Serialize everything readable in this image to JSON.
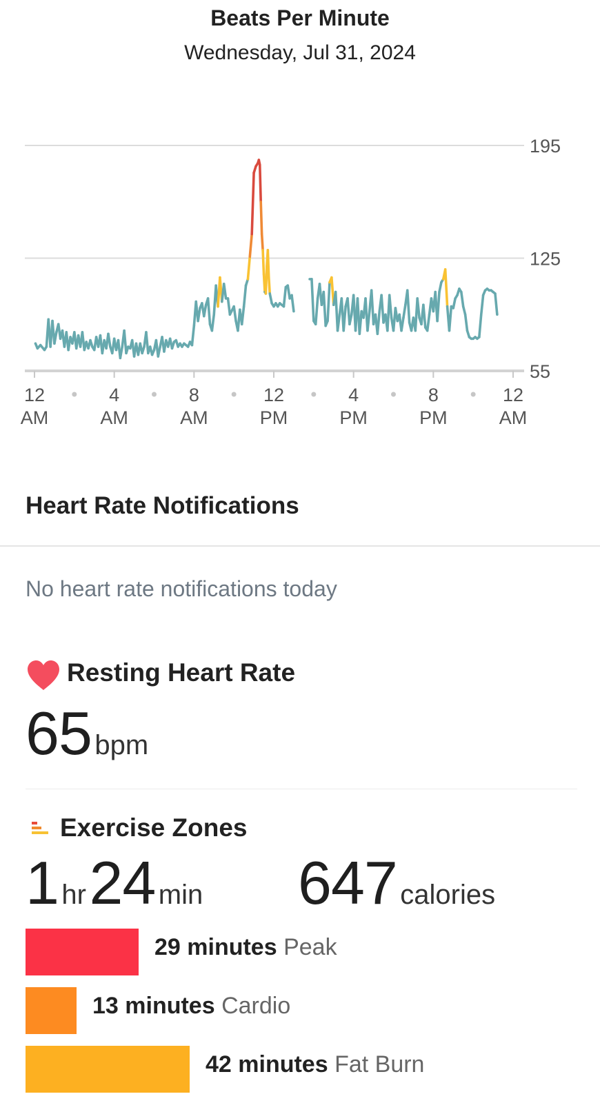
{
  "header": {
    "title": "Beats Per Minute",
    "date": "Wednesday, Jul 31, 2024"
  },
  "chart_data": {
    "type": "line",
    "x_unit": "hour of day",
    "xlim": [
      0,
      24
    ],
    "ylim": [
      55,
      195
    ],
    "y_ticks": [
      195,
      125,
      55
    ],
    "x_ticks": [
      {
        "hour": 0,
        "line1": "12",
        "line2": "AM"
      },
      {
        "hour": 4,
        "line1": "4",
        "line2": "AM"
      },
      {
        "hour": 8,
        "line1": "8",
        "line2": "AM"
      },
      {
        "hour": 12,
        "line1": "12",
        "line2": "PM"
      },
      {
        "hour": 16,
        "line1": "4",
        "line2": "PM"
      },
      {
        "hour": 20,
        "line1": "8",
        "line2": "PM"
      },
      {
        "hour": 24,
        "line1": "12",
        "line2": "AM"
      }
    ],
    "x_minor_ticks": [
      2,
      6,
      10,
      14,
      18,
      22
    ],
    "zone_thresholds": {
      "fat_burn": 113,
      "cardio": 137,
      "peak": 168
    },
    "colors": {
      "normal": "#67a9ae",
      "fat_burn": "#f9c233",
      "cardio": "#ef8a36",
      "peak": "#d94a3e"
    },
    "grid": true,
    "series": [
      {
        "points": [
          [
            0.05,
            72
          ],
          [
            0.15,
            69
          ],
          [
            0.3,
            71
          ],
          [
            0.5,
            68
          ],
          [
            0.6,
            70
          ],
          [
            0.7,
            87
          ],
          [
            0.8,
            70
          ],
          [
            0.9,
            86
          ],
          [
            1.0,
            72
          ],
          [
            1.1,
            79
          ],
          [
            1.2,
            84
          ],
          [
            1.3,
            75
          ],
          [
            1.4,
            80
          ],
          [
            1.5,
            70
          ],
          [
            1.6,
            79
          ],
          [
            1.7,
            68
          ],
          [
            1.8,
            76
          ],
          [
            1.9,
            72
          ],
          [
            2.0,
            79
          ],
          [
            2.1,
            69
          ],
          [
            2.2,
            77
          ],
          [
            2.3,
            70
          ],
          [
            2.4,
            79
          ],
          [
            2.5,
            68
          ],
          [
            2.6,
            73
          ],
          [
            2.7,
            69
          ],
          [
            2.8,
            74
          ],
          [
            2.9,
            70
          ],
          [
            3.0,
            68
          ],
          [
            3.1,
            76
          ],
          [
            3.2,
            70
          ],
          [
            3.3,
            77
          ],
          [
            3.4,
            66
          ],
          [
            3.5,
            74
          ],
          [
            3.6,
            69
          ],
          [
            3.7,
            78
          ],
          [
            3.8,
            70
          ],
          [
            3.9,
            66
          ],
          [
            4.0,
            75
          ],
          [
            4.1,
            68
          ],
          [
            4.2,
            74
          ],
          [
            4.3,
            63
          ],
          [
            4.4,
            70
          ],
          [
            4.5,
            80
          ],
          [
            4.6,
            66
          ],
          [
            4.7,
            70
          ],
          [
            4.8,
            69
          ],
          [
            4.9,
            74
          ],
          [
            5.0,
            64
          ],
          [
            5.1,
            72
          ],
          [
            5.2,
            65
          ],
          [
            5.3,
            72
          ],
          [
            5.4,
            66
          ],
          [
            5.5,
            70
          ],
          [
            5.6,
            79
          ],
          [
            5.7,
            66
          ],
          [
            5.8,
            70
          ],
          [
            5.9,
            65
          ],
          [
            6.0,
            68
          ],
          [
            6.1,
            74
          ],
          [
            6.2,
            64
          ],
          [
            6.3,
            70
          ],
          [
            6.4,
            76
          ],
          [
            6.5,
            67
          ],
          [
            6.6,
            74
          ],
          [
            6.7,
            70
          ],
          [
            6.8,
            75
          ],
          [
            6.9,
            69
          ],
          [
            7.0,
            73
          ],
          [
            7.1,
            74
          ],
          [
            7.2,
            70
          ],
          [
            7.3,
            72
          ],
          [
            7.4,
            70
          ],
          [
            7.5,
            72
          ],
          [
            7.6,
            71
          ],
          [
            7.7,
            70
          ],
          [
            7.8,
            73
          ],
          [
            7.9,
            71
          ],
          [
            8.0,
            83
          ],
          [
            8.1,
            98
          ],
          [
            8.2,
            86
          ],
          [
            8.3,
            94
          ],
          [
            8.4,
            97
          ],
          [
            8.5,
            89
          ],
          [
            8.6,
            96
          ],
          [
            8.7,
            100
          ],
          [
            8.8,
            84
          ],
          [
            8.9,
            80
          ],
          [
            9.0,
            90
          ],
          [
            9.1,
            108
          ],
          [
            9.2,
            95
          ],
          [
            9.3,
            113
          ],
          [
            9.4,
            98
          ],
          [
            9.5,
            109
          ],
          [
            9.6,
            100
          ],
          [
            9.7,
            100
          ],
          [
            9.8,
            90
          ],
          [
            10.0,
            95
          ],
          [
            10.1,
            86
          ],
          [
            10.2,
            80
          ],
          [
            10.3,
            93
          ],
          [
            10.4,
            84
          ],
          [
            10.5,
            95
          ],
          [
            10.6,
            108
          ],
          [
            10.7,
            112
          ],
          [
            10.8,
            126
          ],
          [
            10.9,
            140
          ],
          [
            11.0,
            178
          ],
          [
            11.1,
            182
          ],
          [
            11.2,
            184
          ],
          [
            11.25,
            186
          ],
          [
            11.3,
            183
          ],
          [
            11.35,
            160
          ],
          [
            11.4,
            140
          ],
          [
            11.45,
            130
          ],
          [
            11.5,
            115
          ],
          [
            11.55,
            104
          ],
          [
            11.6,
            103
          ],
          [
            11.65,
            120
          ],
          [
            11.7,
            130
          ],
          [
            11.75,
            113
          ],
          [
            11.8,
            103
          ],
          [
            11.9,
            97
          ],
          [
            12.0,
            95
          ],
          [
            12.1,
            97
          ],
          [
            12.2,
            95
          ],
          [
            12.3,
            97
          ],
          [
            12.4,
            96
          ],
          [
            12.5,
            95
          ],
          [
            12.6,
            107
          ],
          [
            12.7,
            108
          ],
          [
            12.8,
            100
          ],
          [
            12.9,
            102
          ],
          [
            13.0,
            92
          ],
          [
            13.8,
            112
          ],
          [
            13.9,
            112
          ],
          [
            14.0,
            86
          ],
          [
            14.1,
            84
          ],
          [
            14.2,
            100
          ],
          [
            14.3,
            109
          ],
          [
            14.4,
            96
          ],
          [
            14.5,
            104
          ],
          [
            14.6,
            83
          ],
          [
            14.7,
            86
          ],
          [
            14.8,
            110
          ],
          [
            14.9,
            113
          ],
          [
            15.0,
            96
          ],
          [
            15.1,
            104
          ],
          [
            15.2,
            80
          ],
          [
            15.3,
            90
          ],
          [
            15.4,
            100
          ],
          [
            15.5,
            80
          ],
          [
            15.6,
            95
          ],
          [
            15.7,
            100
          ],
          [
            15.8,
            84
          ],
          [
            15.9,
            90
          ],
          [
            16.0,
            102
          ],
          [
            16.1,
            80
          ],
          [
            16.2,
            100
          ],
          [
            16.3,
            78
          ],
          [
            16.4,
            92
          ],
          [
            16.5,
            88
          ],
          [
            16.6,
            100
          ],
          [
            16.7,
            80
          ],
          [
            16.8,
            92
          ],
          [
            16.9,
            105
          ],
          [
            17.0,
            84
          ],
          [
            17.1,
            90
          ],
          [
            17.2,
            78
          ],
          [
            17.3,
            92
          ],
          [
            17.4,
            102
          ],
          [
            17.5,
            85
          ],
          [
            17.6,
            90
          ],
          [
            17.7,
            80
          ],
          [
            17.8,
            102
          ],
          [
            17.9,
            88
          ],
          [
            18.0,
            80
          ],
          [
            18.1,
            94
          ],
          [
            18.2,
            86
          ],
          [
            18.3,
            90
          ],
          [
            18.4,
            80
          ],
          [
            18.5,
            88
          ],
          [
            18.6,
            96
          ],
          [
            18.7,
            105
          ],
          [
            18.8,
            85
          ],
          [
            18.9,
            80
          ],
          [
            19.0,
            88
          ],
          [
            19.1,
            80
          ],
          [
            19.2,
            100
          ],
          [
            19.3,
            88
          ],
          [
            19.4,
            84
          ],
          [
            19.5,
            96
          ],
          [
            19.6,
            82
          ],
          [
            19.7,
            80
          ],
          [
            19.8,
            90
          ],
          [
            19.9,
            100
          ],
          [
            20.0,
            92
          ],
          [
            20.1,
            104
          ],
          [
            20.2,
            86
          ],
          [
            20.3,
            104
          ],
          [
            20.4,
            110
          ],
          [
            20.5,
            112
          ],
          [
            20.6,
            118
          ],
          [
            20.7,
            95
          ],
          [
            20.8,
            80
          ],
          [
            20.9,
            95
          ],
          [
            21.0,
            94
          ],
          [
            21.1,
            100
          ],
          [
            21.2,
            102
          ],
          [
            21.3,
            106
          ],
          [
            21.4,
            104
          ],
          [
            21.5,
            95
          ],
          [
            21.6,
            90
          ],
          [
            21.7,
            80
          ],
          [
            21.8,
            76
          ],
          [
            21.9,
            75
          ],
          [
            22.0,
            75
          ],
          [
            22.1,
            76
          ],
          [
            22.2,
            75
          ],
          [
            22.3,
            76
          ],
          [
            22.4,
            90
          ],
          [
            22.5,
            102
          ],
          [
            22.6,
            105
          ],
          [
            22.7,
            106
          ],
          [
            22.8,
            105
          ],
          [
            22.9,
            105
          ],
          [
            23.0,
            104
          ],
          [
            23.1,
            103
          ],
          [
            23.2,
            90
          ]
        ]
      }
    ]
  },
  "notifications": {
    "title": "Heart Rate Notifications",
    "empty_text": "No heart rate notifications today"
  },
  "resting": {
    "title": "Resting Heart Rate",
    "value": "65",
    "unit": "bpm",
    "icon": "heart-icon",
    "icon_color": "#f44d5e"
  },
  "exercise": {
    "title": "Exercise Zones",
    "icon": "zones-icon",
    "hours": "1",
    "hours_unit": "hr",
    "minutes": "24",
    "minutes_unit": "min",
    "calories": "647",
    "calories_unit": "calories",
    "zones": [
      {
        "minutes": 29,
        "minutes_text": "29 minutes",
        "name": "Peak",
        "color": "#fb3246"
      },
      {
        "minutes": 13,
        "minutes_text": "13 minutes",
        "name": "Cardio",
        "color": "#fd8b21"
      },
      {
        "minutes": 42,
        "minutes_text": "42 minutes",
        "name": "Fat Burn",
        "color": "#fdb021"
      }
    ]
  }
}
